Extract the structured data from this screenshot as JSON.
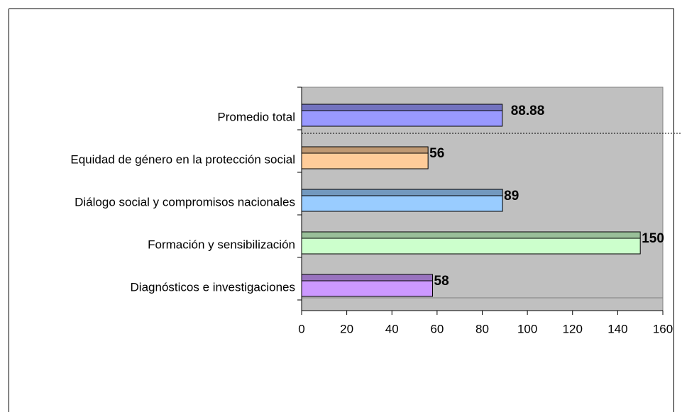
{
  "chart_data": {
    "type": "bar",
    "orientation": "horizontal",
    "categories": [
      "Promedio total",
      "Equidad de género en la protección social",
      "Diálogo social y compromisos nacionales",
      "Formación y sensibilización",
      "Diagnósticos e investigaciones"
    ],
    "values": [
      88.88,
      56,
      89,
      150,
      58
    ],
    "colors": [
      "#9999ff",
      "#ffcc99",
      "#99ccff",
      "#ccffcc",
      "#cc99ff"
    ],
    "xlim": [
      0,
      160
    ],
    "xticks": [
      0,
      20,
      40,
      60,
      80,
      100,
      120,
      140,
      160
    ]
  }
}
